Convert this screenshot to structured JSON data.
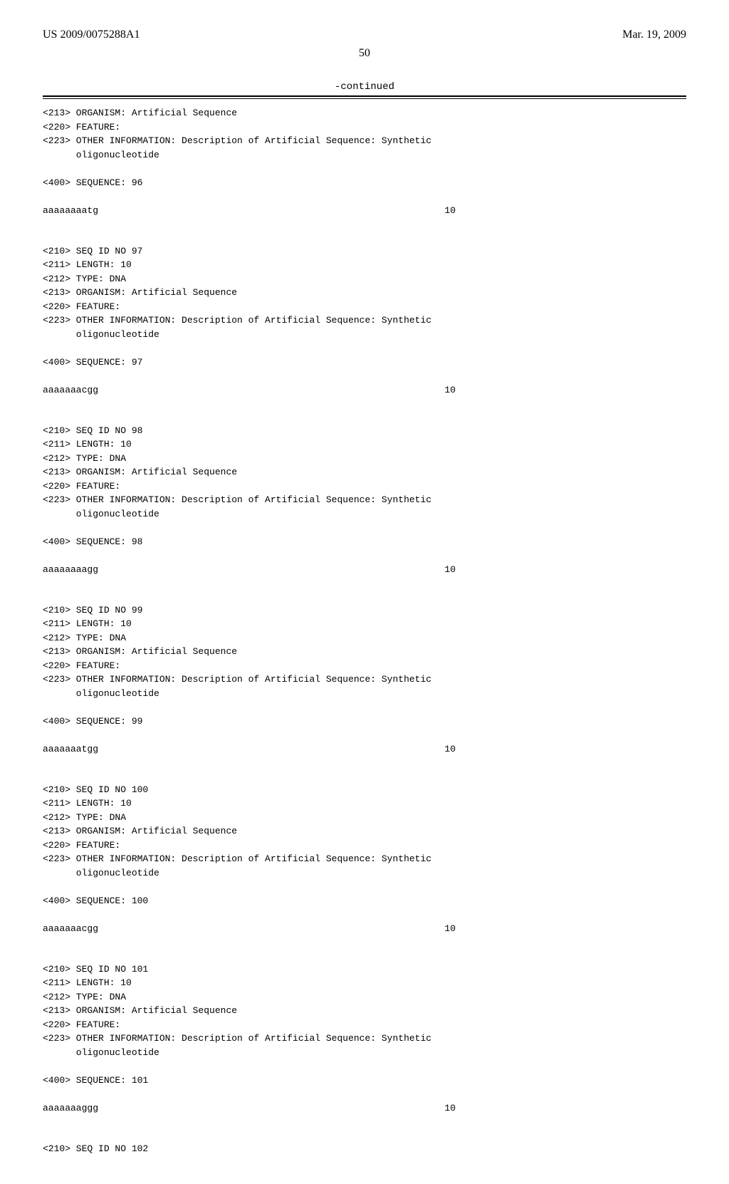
{
  "header": {
    "left": "US 2009/0075288A1",
    "right": "Mar. 19, 2009"
  },
  "page_number": "50",
  "continued_label": "-continued",
  "top_fragment": {
    "lines": [
      "<213> ORGANISM: Artificial Sequence",
      "<220> FEATURE:",
      "<223> OTHER INFORMATION: Description of Artificial Sequence: Synthetic",
      "      oligonucleotide"
    ],
    "seq_label": "<400> SEQUENCE: 96",
    "sequence": "aaaaaaaatg",
    "length": "10"
  },
  "entries": [
    {
      "lines": [
        "<210> SEQ ID NO 97",
        "<211> LENGTH: 10",
        "<212> TYPE: DNA",
        "<213> ORGANISM: Artificial Sequence",
        "<220> FEATURE:",
        "<223> OTHER INFORMATION: Description of Artificial Sequence: Synthetic",
        "      oligonucleotide"
      ],
      "seq_label": "<400> SEQUENCE: 97",
      "sequence": "aaaaaaacgg",
      "length": "10"
    },
    {
      "lines": [
        "<210> SEQ ID NO 98",
        "<211> LENGTH: 10",
        "<212> TYPE: DNA",
        "<213> ORGANISM: Artificial Sequence",
        "<220> FEATURE:",
        "<223> OTHER INFORMATION: Description of Artificial Sequence: Synthetic",
        "      oligonucleotide"
      ],
      "seq_label": "<400> SEQUENCE: 98",
      "sequence": "aaaaaaaagg",
      "length": "10"
    },
    {
      "lines": [
        "<210> SEQ ID NO 99",
        "<211> LENGTH: 10",
        "<212> TYPE: DNA",
        "<213> ORGANISM: Artificial Sequence",
        "<220> FEATURE:",
        "<223> OTHER INFORMATION: Description of Artificial Sequence: Synthetic",
        "      oligonucleotide"
      ],
      "seq_label": "<400> SEQUENCE: 99",
      "sequence": "aaaaaaatgg",
      "length": "10"
    },
    {
      "lines": [
        "<210> SEQ ID NO 100",
        "<211> LENGTH: 10",
        "<212> TYPE: DNA",
        "<213> ORGANISM: Artificial Sequence",
        "<220> FEATURE:",
        "<223> OTHER INFORMATION: Description of Artificial Sequence: Synthetic",
        "      oligonucleotide"
      ],
      "seq_label": "<400> SEQUENCE: 100",
      "sequence": "aaaaaaacgg",
      "length": "10"
    },
    {
      "lines": [
        "<210> SEQ ID NO 101",
        "<211> LENGTH: 10",
        "<212> TYPE: DNA",
        "<213> ORGANISM: Artificial Sequence",
        "<220> FEATURE:",
        "<223> OTHER INFORMATION: Description of Artificial Sequence: Synthetic",
        "      oligonucleotide"
      ],
      "seq_label": "<400> SEQUENCE: 101",
      "sequence": "aaaaaaaggg",
      "length": "10"
    }
  ],
  "trailing_line": "<210> SEQ ID NO 102"
}
